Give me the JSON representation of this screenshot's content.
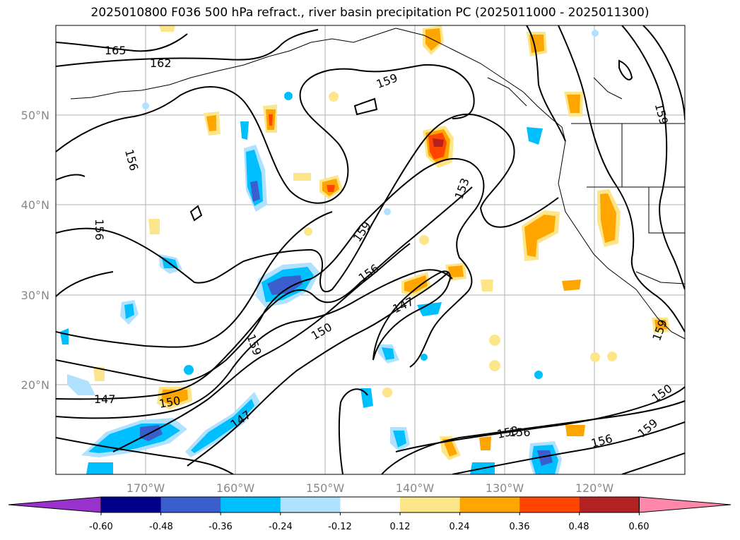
{
  "title": "2025010800 F036 500 hPa refract., river basin precipitation PC (2025011000 - 2025011300)",
  "longitude_ticks": [
    "170°W",
    "160°W",
    "150°W",
    "140°W",
    "130°W",
    "120°W"
  ],
  "latitude_ticks": [
    "50°N",
    "40°N",
    "30°N",
    "20°N"
  ],
  "contour_labels": [
    "165",
    "162",
    "159",
    "159",
    "159",
    "159",
    "156",
    "156",
    "156",
    "156",
    "156",
    "153",
    "153",
    "150",
    "150",
    "150",
    "147",
    "147",
    "147",
    "159",
    "159",
    "156"
  ],
  "colorbar": {
    "tick_labels": [
      "-0.60",
      "-0.48",
      "-0.36",
      "-0.24",
      "-0.12",
      "0.12",
      "0.24",
      "0.36",
      "0.48",
      "0.60"
    ],
    "colors": [
      "#9932cc",
      "#00008b",
      "#3a5fcd",
      "#00bfff",
      "#b0e2ff",
      "#ffffff",
      "#fde68a",
      "#ffa500",
      "#ff4500",
      "#b22222",
      "#ff88aa"
    ],
    "extend": "both"
  }
}
